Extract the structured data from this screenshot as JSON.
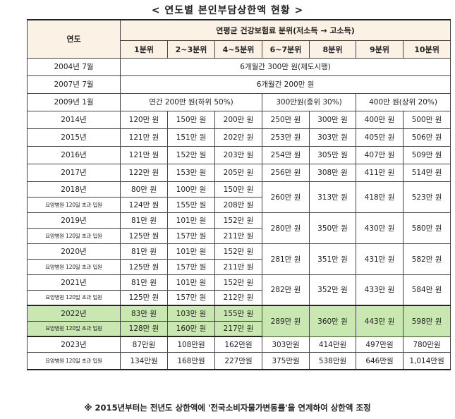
{
  "title": "< 연도별 본인부담상한액 현황 >",
  "header": {
    "year_col": "연도",
    "group_label": "연평균 건강보험료 분위(저소득 → 고소득)",
    "deciles": [
      "1분위",
      "2~3분위",
      "4~5분위",
      "6~7분위",
      "8분위",
      "9분위",
      "10분위"
    ]
  },
  "rows_simple": [
    {
      "year": "2004년 7월",
      "text": "6개월간 300만 원(제도시행)"
    },
    {
      "year": "2007년 7월",
      "text": "6개월간 200만 원"
    }
  ],
  "row_2009": {
    "year": "2009년 1월",
    "low": "연간 200만 원(하위 50%)",
    "mid": "300만원(중위 30%)",
    "high": "400만 원(상위 20%)"
  },
  "rows_full": [
    {
      "year": "2014년",
      "v": [
        "120만 원",
        "150만 원",
        "200만 원",
        "250만 원",
        "300만 원",
        "400만 원",
        "500만 원"
      ]
    },
    {
      "year": "2015년",
      "v": [
        "121만 원",
        "151만 원",
        "202만 원",
        "253만 원",
        "303만 원",
        "405만 원",
        "506만 원"
      ]
    },
    {
      "year": "2016년",
      "v": [
        "121만 원",
        "152만 원",
        "203만 원",
        "254만 원",
        "305만 원",
        "407만 원",
        "509만 원"
      ]
    },
    {
      "year": "2017년",
      "v": [
        "122만 원",
        "153만 원",
        "205만 원",
        "256만 원",
        "308만 원",
        "411만 원",
        "514만 원"
      ]
    }
  ],
  "sub_label": "요양병원 120일 초과 입원",
  "rows_split": [
    {
      "year": "2018년",
      "top": [
        "80만 원",
        "100만 원",
        "150만 원"
      ],
      "bottom": [
        "124만 원",
        "155만 원",
        "208만 원"
      ],
      "shared": [
        "260만 원",
        "313만 원",
        "418만 원",
        "523만 원"
      ]
    },
    {
      "year": "2019년",
      "top": [
        "81만 원",
        "101만 원",
        "152만 원"
      ],
      "bottom": [
        "125만 원",
        "157만 원",
        "211만 원"
      ],
      "shared": [
        "280만 원",
        "350만 원",
        "430만 원",
        "580만 원"
      ]
    },
    {
      "year": "2020년",
      "top": [
        "81만 원",
        "101만 원",
        "152만 원"
      ],
      "bottom": [
        "125만 원",
        "157만 원",
        "211만 원"
      ],
      "shared": [
        "281만 원",
        "351만 원",
        "431만 원",
        "582만 원"
      ]
    },
    {
      "year": "2021년",
      "top": [
        "81만 원",
        "101만 원",
        "152만 원"
      ],
      "bottom": [
        "125만 원",
        "157만 원",
        "212만 원"
      ],
      "shared": [
        "282만 원",
        "352만 원",
        "433만 원",
        "584만 원"
      ]
    },
    {
      "year": "2022년",
      "top": [
        "83만 원",
        "103만 원",
        "155만 원"
      ],
      "bottom": [
        "128만 원",
        "160만 원",
        "217만 원"
      ],
      "shared": [
        "289만 원",
        "360만 원",
        "443만 원",
        "598만 원"
      ]
    }
  ],
  "row_2023": {
    "year": "2023년",
    "top": [
      "87만원",
      "108만원",
      "162만원",
      "303만원",
      "414만원",
      "497만원",
      "780만원"
    ],
    "bottom": [
      "134만원",
      "168만원",
      "227만원",
      "375만원",
      "538만원",
      "646만원",
      "1,014만원"
    ]
  },
  "highlight_color": "#c9e7b1",
  "note": "※ 2015년부터는 전년도 상한액에 '전국소비자물가변동률'을 연계하여 상한액 조정"
}
